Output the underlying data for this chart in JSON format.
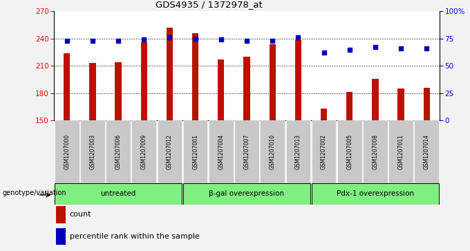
{
  "title": "GDS4935 / 1372978_at",
  "samples": [
    "GSM1207000",
    "GSM1207003",
    "GSM1207006",
    "GSM1207009",
    "GSM1207012",
    "GSM1207001",
    "GSM1207004",
    "GSM1207007",
    "GSM1207010",
    "GSM1207013",
    "GSM1207002",
    "GSM1207005",
    "GSM1207008",
    "GSM1207011",
    "GSM1207014"
  ],
  "counts": [
    224,
    213,
    214,
    236,
    252,
    246,
    217,
    220,
    234,
    238,
    163,
    181,
    196,
    185,
    186
  ],
  "percentiles": [
    73,
    73,
    73,
    74,
    76,
    75,
    74,
    73,
    73,
    76,
    62,
    65,
    67,
    66,
    66
  ],
  "group_defs": [
    [
      0,
      5,
      "untreated"
    ],
    [
      5,
      10,
      "β-gal overexpression"
    ],
    [
      10,
      15,
      "Pdx-1 overexpression"
    ]
  ],
  "bar_color": "#BB1100",
  "dot_color": "#0000BB",
  "left_ylim": [
    150,
    270
  ],
  "left_yticks": [
    150,
    180,
    210,
    240,
    270
  ],
  "right_ylim": [
    0,
    100
  ],
  "right_yticks": [
    0,
    25,
    50,
    75,
    100
  ],
  "right_yticklabels": [
    "0",
    "25",
    "50",
    "75",
    "100%"
  ],
  "bg_color": "#f2f2f2",
  "plot_bg": "#ffffff",
  "sample_box_color": "#c8c8c8",
  "group_box_color": "#80ee80",
  "legend_count_label": "count",
  "legend_pct_label": "percentile rank within the sample",
  "genotype_label": "genotype/variation",
  "dotted_grid_values": [
    180,
    210,
    240
  ],
  "bar_width": 0.25
}
